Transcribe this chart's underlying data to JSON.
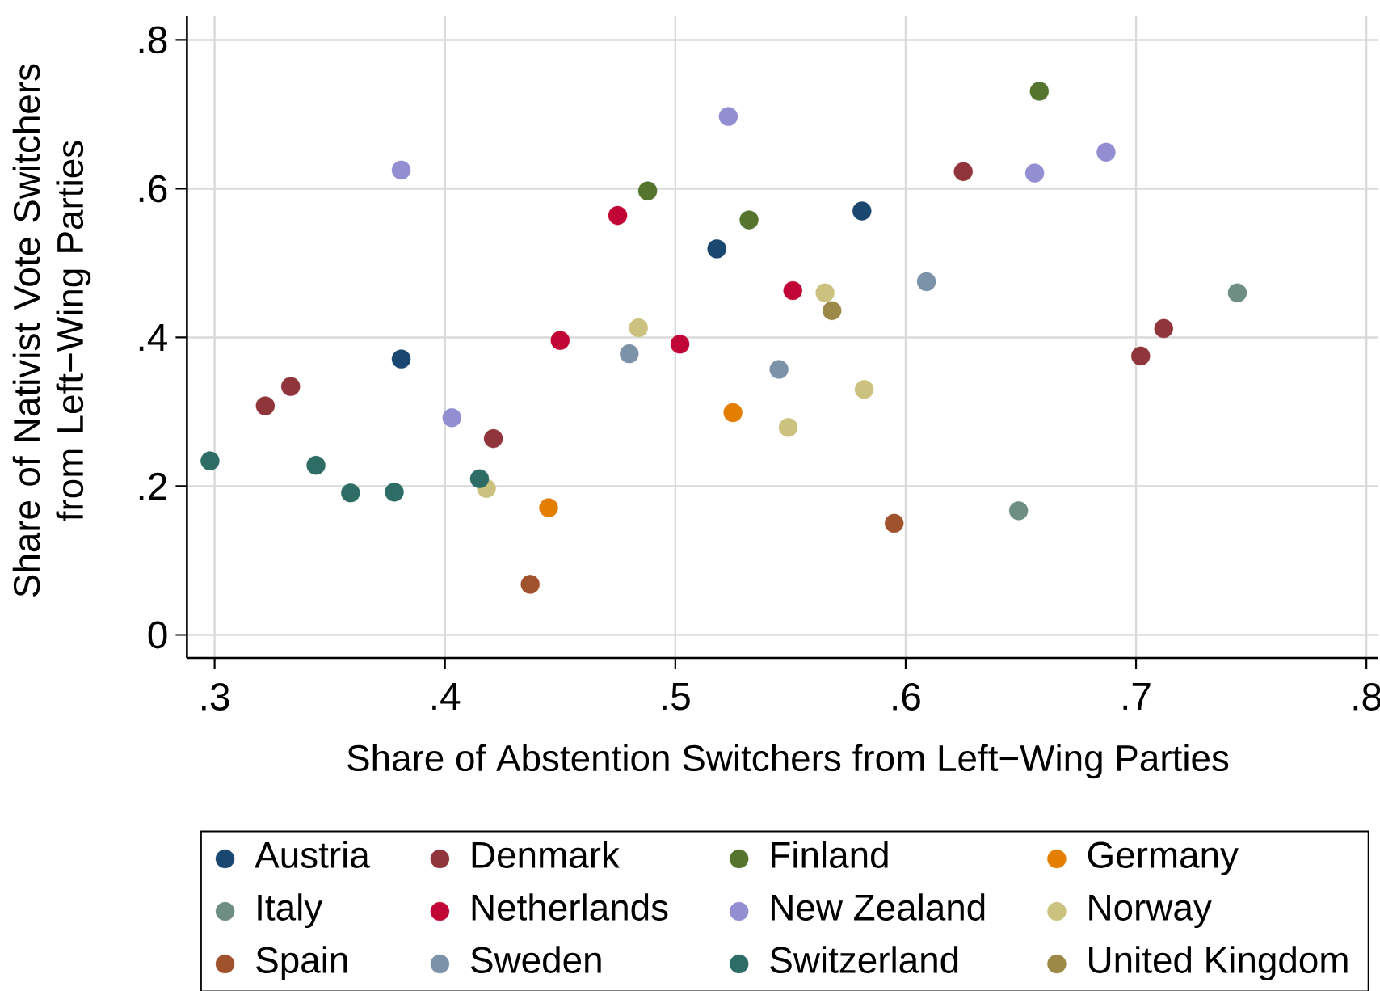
{
  "chart_data": {
    "type": "scatter",
    "xlabel": "Share of Abstention Switchers from Left−Wing Parties",
    "ylabel": "Share of Nativist Vote Switchers from Left−Wing Parties",
    "xlim": [
      0.288,
      0.805
    ],
    "ylim": [
      -0.031,
      0.832
    ],
    "xticks": [
      {
        "value": 0.3,
        "label": ".3"
      },
      {
        "value": 0.4,
        "label": ".4"
      },
      {
        "value": 0.5,
        "label": ".5"
      },
      {
        "value": 0.6,
        "label": ".6"
      },
      {
        "value": 0.7,
        "label": ".7"
      },
      {
        "value": 0.8,
        "label": ".8"
      }
    ],
    "yticks": [
      0,
      {
        "value": 0.2,
        "label": ".2"
      },
      {
        "value": 0.4,
        "label": ".4"
      },
      {
        "value": 0.6,
        "label": ".6"
      },
      {
        "value": 0.8,
        "label": ".8"
      }
    ],
    "grid": true,
    "legend": "bottom",
    "marker": "circle",
    "series": [
      {
        "name": "Austria",
        "color": "#1a476f",
        "x": [
          0.381,
          0.518,
          0.581
        ],
        "values": [
          0.371,
          0.519,
          0.57
        ]
      },
      {
        "name": "Denmark",
        "color": "#90353b",
        "x": [
          0.322,
          0.333,
          0.421,
          0.625,
          0.702,
          0.712
        ],
        "values": [
          0.308,
          0.334,
          0.264,
          0.623,
          0.375,
          0.412
        ]
      },
      {
        "name": "Finland",
        "color": "#55752f",
        "x": [
          0.488,
          0.532,
          0.658
        ],
        "values": [
          0.597,
          0.558,
          0.731
        ]
      },
      {
        "name": "Germany",
        "color": "#e37e00",
        "x": [
          0.445,
          0.525
        ],
        "values": [
          0.171,
          0.299
        ]
      },
      {
        "name": "Italy",
        "color": "#6e8e84",
        "x": [
          0.649,
          0.744
        ],
        "values": [
          0.167,
          0.46
        ]
      },
      {
        "name": "Netherlands",
        "color": "#c10534",
        "x": [
          0.45,
          0.475,
          0.502,
          0.551
        ],
        "values": [
          0.396,
          0.564,
          0.391,
          0.463
        ]
      },
      {
        "name": "New Zealand",
        "color": "#938dd2",
        "x": [
          0.381,
          0.403,
          0.523,
          0.656,
          0.687
        ],
        "values": [
          0.625,
          0.292,
          0.697,
          0.621,
          0.649
        ]
      },
      {
        "name": "Norway",
        "color": "#cac27e",
        "x": [
          0.418,
          0.484,
          0.549,
          0.565,
          0.582
        ],
        "values": [
          0.197,
          0.413,
          0.279,
          0.46,
          0.33
        ]
      },
      {
        "name": "Spain",
        "color": "#a0522d",
        "x": [
          0.437,
          0.595
        ],
        "values": [
          0.068,
          0.15
        ]
      },
      {
        "name": "Sweden",
        "color": "#7b92a8",
        "x": [
          0.48,
          0.545,
          0.609
        ],
        "values": [
          0.378,
          0.357,
          0.475
        ]
      },
      {
        "name": "Switzerland",
        "color": "#2d6d66",
        "x": [
          0.298,
          0.344,
          0.359,
          0.378,
          0.415
        ],
        "values": [
          0.234,
          0.228,
          0.191,
          0.192,
          0.21
        ]
      },
      {
        "name": "United Kingdom",
        "color": "#9c8847",
        "x": [
          0.568
        ],
        "values": [
          0.436
        ]
      }
    ]
  }
}
